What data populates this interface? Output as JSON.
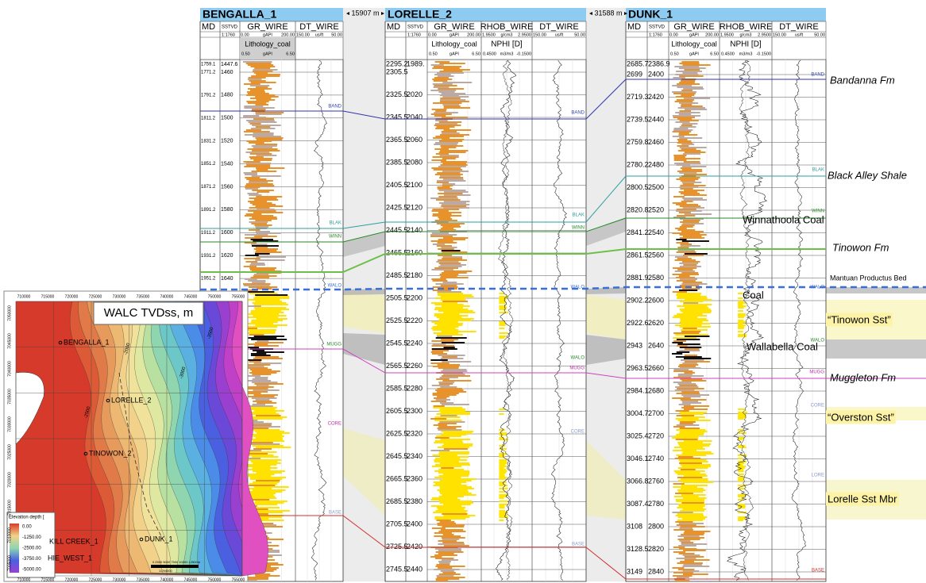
{
  "wells": [
    {
      "name": "BENGALLA_1",
      "columns": [
        {
          "title": "MD"
        },
        {
          "title": "SSTVD",
          "scale": [
            "1:1760"
          ]
        },
        {
          "title": "GR_WIRE",
          "scale": [
            "0.00",
            "gAPI",
            "200.00"
          ],
          "sub": "Lithology_coal",
          "sub_scale": [
            "0.50",
            "gAPI",
            "6.50"
          ]
        },
        {
          "title": "DT_WIRE",
          "scale": [
            "150.00",
            "us/ft",
            "50.00"
          ]
        }
      ],
      "md": [
        "1759.1",
        "1771.2",
        "1791.2",
        "1811.2",
        "1831.2",
        "1851.2",
        "1871.2",
        "1891.2",
        "1911.2",
        "1931.2",
        "1951.2"
      ],
      "tvd": [
        "1447.6",
        "1460",
        "1480",
        "1500",
        "1520",
        "1540",
        "1560",
        "1580",
        "1600",
        "1620",
        "1640"
      ],
      "tops": [
        "BAND",
        "BLAK",
        "WINN",
        "WALO",
        "MUGG",
        "CORE",
        "BASE"
      ]
    },
    {
      "name": "LORELLE_2",
      "columns": [
        {
          "title": "MD"
        },
        {
          "title": "SSTVD",
          "scale": [
            "1:1760"
          ]
        },
        {
          "title": "GR_WIRE",
          "scale": [
            "0.00",
            "gAPI",
            "200.00"
          ],
          "sub": "Lithology_coal",
          "sub_scale": [
            "0.50",
            "gAPI",
            "6.50"
          ]
        },
        {
          "title": "RHOB_WIRE",
          "scale": [
            "1.9500",
            "g/cm3",
            "2.9500"
          ],
          "sub": "NPHI [D]",
          "sub_scale": [
            "0.4500",
            "m3/m3",
            "-0.1500"
          ]
        },
        {
          "title": "DT_WIRE",
          "scale": [
            "150.00",
            "us/ft",
            "50.00"
          ]
        }
      ],
      "md": [
        "2295.2",
        "2305.5",
        "2325.5",
        "2345.5",
        "2365.5",
        "2385.5",
        "2405.5",
        "2425.5",
        "2445.5",
        "2465.5",
        "2485.5",
        "2505.5",
        "2525.5",
        "2545.5",
        "2565.5",
        "2585.5",
        "2605.5",
        "2625.5",
        "2645.5",
        "2665.5",
        "2685.5",
        "2705.5",
        "2725.5",
        "2745.5"
      ],
      "tvd": [
        "1989.",
        null,
        "2020",
        "2040",
        "2060",
        "2080",
        "2100",
        "2120",
        "2140",
        "2160",
        "2180",
        "2200",
        "2220",
        "2240",
        "2260",
        "2280",
        "2300",
        "2320",
        "2340",
        "2360",
        "2380",
        "2400",
        "2420",
        "2440"
      ],
      "tops": [
        "BAND",
        "BLAK",
        "WINN",
        "WALO",
        "WALO",
        "MUGG",
        "CORE",
        "BASE"
      ]
    },
    {
      "name": "DUNK_1",
      "columns": [
        {
          "title": "MD"
        },
        {
          "title": "SSTVD",
          "scale": [
            "1:1760"
          ]
        },
        {
          "title": "GR_WIRE",
          "scale": [
            "0.00",
            "gAPI",
            "200.00"
          ],
          "sub": "Lithology_coal",
          "sub_scale": [
            "0.50",
            "gAPI",
            "6.50"
          ]
        },
        {
          "title": "RHOB_WIRE",
          "scale": [
            "1.9500",
            "g/cm3",
            "2.9500"
          ],
          "sub": "NPHI [D]",
          "sub_scale": [
            "0.4500",
            "m3/m3",
            "-0.1500"
          ]
        },
        {
          "title": "DT_WIRE",
          "scale": [
            "150.00",
            "us/ft",
            "50.00"
          ]
        }
      ],
      "md": [
        "2685.7",
        "2699",
        "2719.3",
        "2739.5",
        "2759.8",
        "2780.2",
        "2800.5",
        "2820.8",
        "2841.2",
        "2861.5",
        "2881.9",
        "2902.2",
        "2922.6",
        "2943",
        "2963.5",
        "2984.1",
        "3004.7",
        "3025.4",
        "3046.1",
        "3066.8",
        "3087.4",
        "3108",
        "3128.5",
        "3149"
      ],
      "tvd": [
        "2386.9",
        "2400",
        "2420",
        "2440",
        "2460",
        "2480",
        "2500",
        "2520",
        "2540",
        "2560",
        "2580",
        "2600",
        "2620",
        "2640",
        "2660",
        "2680",
        "2700",
        "2720",
        "2740",
        "2760",
        "2780",
        "2800",
        "2820",
        "2840"
      ],
      "tops": [
        "BAND",
        "BLAK",
        "WINN",
        "WALO",
        "WALO",
        "MUGG",
        "CORE",
        "LORE",
        "BASE"
      ]
    }
  ],
  "spacings": [
    "15907 m",
    "31588 m"
  ],
  "formations": [
    "Bandanna Fm",
    "Black Alley Shale",
    "Winnathoola Coal",
    "Tinowon Fm",
    "Mantuan Productus Bed",
    "Coal",
    "“Tinowon Sst”",
    "Wallabella Coal",
    "Muggleton Fm",
    "“Overston Sst”",
    "Lorelle Sst Mbr"
  ],
  "map": {
    "title": "WALC TVDss, m",
    "xticks": [
      "710000",
      "715000",
      "720000",
      "725000",
      "730000",
      "735000",
      "740000",
      "745000",
      "750000",
      "755000"
    ],
    "yticks": [
      "7050000",
      "7045000",
      "7040000",
      "7035000",
      "7030000",
      "7025000",
      "7020000",
      "7015000",
      "7010000",
      "7005000"
    ],
    "wells": [
      "BENGALLA_1",
      "LORELLE_2",
      "TINOWON_2",
      "DUNK_1",
      "KILL CREEK_1",
      "HIE_WEST_1"
    ],
    "contours": [
      "-2000",
      "-2500",
      "-3000",
      "-3500"
    ],
    "legend": {
      "title": "Elevation depth [",
      "labels": [
        "0.00",
        "-1250.00",
        "-2500.00",
        "-3750.00",
        "-5000.00"
      ]
    },
    "scale_bar": "0 2500 5000 7500 10000 12500m",
    "scale_ratio": "1:294000"
  }
}
